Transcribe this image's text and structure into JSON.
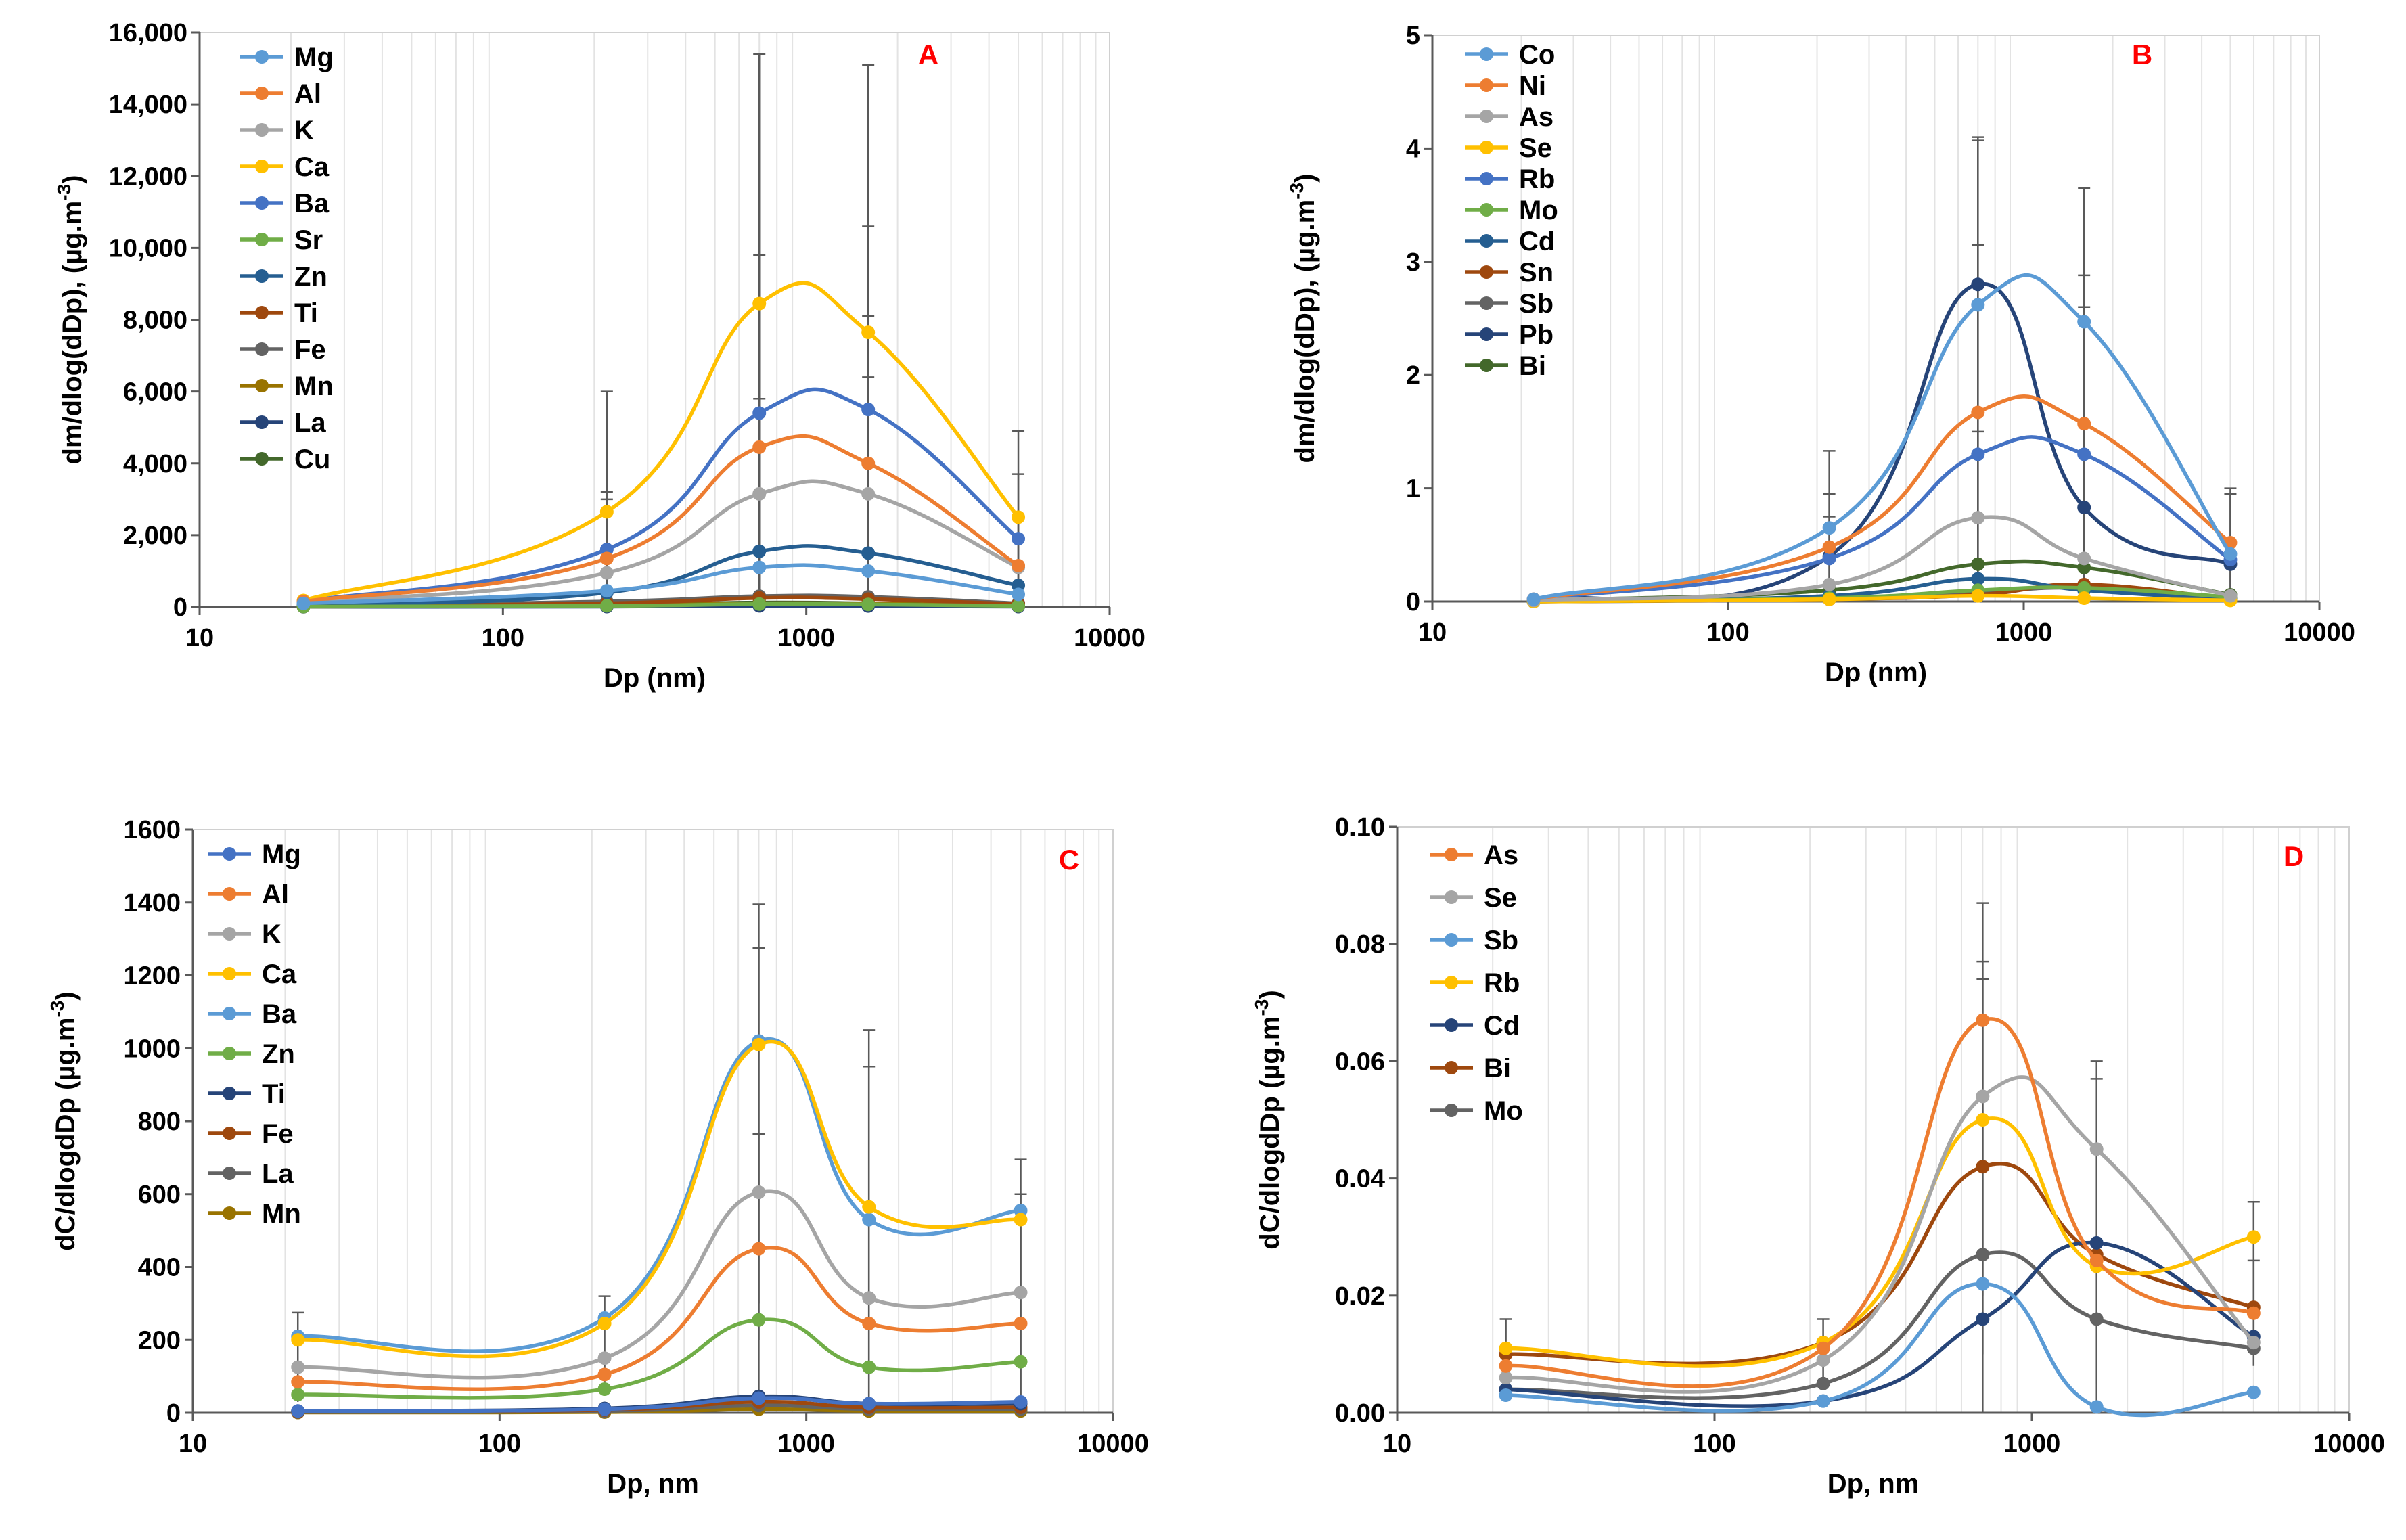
{
  "chart_data": [
    {
      "id": "A",
      "type": "line",
      "xscale": "log",
      "panel_label": "A",
      "xlabel": "Dp (nm)",
      "ylabel": "dm/dlog(dDp), (µg.m-3)",
      "ylabel_main": "dm/dlog(dDp), (µg.m",
      "ylabel_sup": "-3",
      "ylabel_end": ")",
      "xlim": [
        10,
        10000
      ],
      "ylim": [
        0,
        16000
      ],
      "xticks": [
        10,
        100,
        1000,
        10000
      ],
      "xtick_labels": [
        "10",
        "100",
        "1000",
        "10000"
      ],
      "yticks": [
        0,
        2000,
        4000,
        6000,
        8000,
        10000,
        12000,
        14000,
        16000
      ],
      "ytick_labels": [
        "0",
        "2,000",
        "4,000",
        "6,000",
        "8,000",
        "10,000",
        "12,000",
        "14,000",
        "16,000"
      ],
      "x": [
        22,
        220,
        700,
        1600,
        5000
      ],
      "series": [
        {
          "name": "Mg",
          "color": "#5B9BD5",
          "values": [
            100,
            450,
            1100,
            1000,
            350
          ]
        },
        {
          "name": "Al",
          "color": "#ED7D31",
          "values": [
            150,
            1350,
            4450,
            4000,
            1150
          ]
        },
        {
          "name": "K",
          "color": "#A5A5A5",
          "values": [
            120,
            950,
            3150,
            3150,
            1100
          ]
        },
        {
          "name": "Ca",
          "color": "#FFC000",
          "values": [
            180,
            2650,
            8450,
            7650,
            2500
          ]
        },
        {
          "name": "Ba",
          "color": "#4472C4",
          "values": [
            150,
            1600,
            5400,
            5500,
            1900
          ]
        },
        {
          "name": "Sr",
          "color": "#70AD47",
          "values": [
            10,
            30,
            80,
            70,
            30
          ]
        },
        {
          "name": "Zn",
          "color": "#255E91",
          "values": [
            50,
            400,
            1550,
            1500,
            600
          ]
        },
        {
          "name": "Ti",
          "color": "#9E480E",
          "values": [
            20,
            100,
            250,
            220,
            80
          ]
        },
        {
          "name": "Fe",
          "color": "#636363",
          "values": [
            30,
            150,
            300,
            280,
            100
          ]
        },
        {
          "name": "Mn",
          "color": "#997300",
          "values": [
            10,
            40,
            100,
            90,
            30
          ]
        },
        {
          "name": "La",
          "color": "#264478",
          "values": [
            5,
            10,
            30,
            25,
            10
          ]
        },
        {
          "name": "Cu",
          "color": "#43682B",
          "values": [
            20,
            60,
            120,
            100,
            40
          ]
        }
      ],
      "error_bars": [
        {
          "x": 22,
          "low": 0,
          "high": 250
        },
        {
          "x": 220,
          "low": 0,
          "high": 6000
        },
        {
          "x": 220,
          "low": 0,
          "high": 3200
        },
        {
          "x": 220,
          "low": 0,
          "high": 3000
        },
        {
          "x": 700,
          "low": 0,
          "high": 15400
        },
        {
          "x": 700,
          "low": 0,
          "high": 9800
        },
        {
          "x": 700,
          "low": 0,
          "high": 5800
        },
        {
          "x": 1600,
          "low": 0,
          "high": 15100
        },
        {
          "x": 1600,
          "low": 0,
          "high": 10600
        },
        {
          "x": 1600,
          "low": 0,
          "high": 8100
        },
        {
          "x": 1600,
          "low": 0,
          "high": 6400
        },
        {
          "x": 5000,
          "low": 0,
          "high": 4900
        },
        {
          "x": 5000,
          "low": 0,
          "high": 3700
        },
        {
          "x": 5000,
          "low": 0,
          "high": 2500
        }
      ]
    },
    {
      "id": "B",
      "type": "line",
      "xscale": "log",
      "panel_label": "B",
      "xlabel": "Dp (nm)",
      "ylabel": "dm/dlog(dDp), (µg.m-3)",
      "ylabel_main": "dm/dlog(dDp), (µg.m",
      "ylabel_sup": "-3",
      "ylabel_end": ")",
      "xlim": [
        10,
        10000
      ],
      "ylim": [
        0,
        5
      ],
      "xticks": [
        10,
        100,
        1000,
        10000
      ],
      "xtick_labels": [
        "10",
        "100",
        "1000",
        "10000"
      ],
      "yticks": [
        0,
        1,
        2,
        3,
        4,
        5
      ],
      "ytick_labels": [
        "0",
        "1",
        "2",
        "3",
        "4",
        "5"
      ],
      "x": [
        22,
        220,
        700,
        1600,
        5000
      ],
      "series": [
        {
          "name": "Co",
          "color": "#5B9BD5",
          "values": [
            0.02,
            0.65,
            2.62,
            2.47,
            0.42
          ]
        },
        {
          "name": "Ni",
          "color": "#ED7D31",
          "values": [
            0.02,
            0.48,
            1.67,
            1.57,
            0.52
          ]
        },
        {
          "name": "As",
          "color": "#A5A5A5",
          "values": [
            0.01,
            0.15,
            0.74,
            0.38,
            0.05
          ]
        },
        {
          "name": "Se",
          "color": "#FFC000",
          "values": [
            0.0,
            0.02,
            0.05,
            0.03,
            0.01
          ]
        },
        {
          "name": "Rb",
          "color": "#4472C4",
          "values": [
            0.02,
            0.38,
            1.3,
            1.3,
            0.37
          ]
        },
        {
          "name": "Mo",
          "color": "#70AD47",
          "values": [
            0.0,
            0.03,
            0.1,
            0.12,
            0.04
          ]
        },
        {
          "name": "Cd",
          "color": "#255E91",
          "values": [
            0.0,
            0.05,
            0.2,
            0.1,
            0.02
          ]
        },
        {
          "name": "Sn",
          "color": "#9E480E",
          "values": [
            0.0,
            0.02,
            0.06,
            0.15,
            0.02
          ]
        },
        {
          "name": "Sb",
          "color": "#636363",
          "values": [
            0.0,
            0.02,
            0.08,
            0.12,
            0.03
          ]
        },
        {
          "name": "Pb",
          "color": "#264478",
          "values": [
            0.02,
            0.4,
            2.8,
            0.83,
            0.33
          ]
        },
        {
          "name": "Bi",
          "color": "#43682B",
          "values": [
            0.01,
            0.1,
            0.33,
            0.3,
            0.06
          ]
        }
      ],
      "error_bars": [
        {
          "x": 220,
          "low": 0,
          "high": 1.33
        },
        {
          "x": 220,
          "low": 0,
          "high": 0.95
        },
        {
          "x": 220,
          "low": 0,
          "high": 0.75
        },
        {
          "x": 700,
          "low": 0,
          "high": 4.1
        },
        {
          "x": 700,
          "low": 0,
          "high": 4.07
        },
        {
          "x": 700,
          "low": 0,
          "high": 3.15
        },
        {
          "x": 700,
          "low": 0,
          "high": 1.5
        },
        {
          "x": 1600,
          "low": 0,
          "high": 3.65
        },
        {
          "x": 1600,
          "low": 0,
          "high": 2.88
        },
        {
          "x": 1600,
          "low": 0,
          "high": 2.6
        },
        {
          "x": 5000,
          "low": 0,
          "high": 1.0
        },
        {
          "x": 5000,
          "low": 0,
          "high": 0.95
        }
      ]
    },
    {
      "id": "C",
      "type": "line",
      "xscale": "log",
      "panel_label": "C",
      "xlabel": "Dp, nm",
      "ylabel": "dC/dlogdDp (µg.m-3)",
      "ylabel_main": "dC/dlogdDp (µg.m",
      "ylabel_sup": "-3",
      "ylabel_end": ")",
      "xlim": [
        10,
        10000
      ],
      "ylim": [
        0,
        1600
      ],
      "xticks": [
        10,
        100,
        1000,
        10000
      ],
      "xtick_labels": [
        "10",
        "100",
        "1000",
        "10000"
      ],
      "yticks": [
        0,
        200,
        400,
        600,
        800,
        1000,
        1200,
        1400,
        1600
      ],
      "ytick_labels": [
        "0",
        "200",
        "400",
        "600",
        "800",
        "1000",
        "1200",
        "1400",
        "1600"
      ],
      "x": [
        22,
        220,
        700,
        1600,
        5000
      ],
      "series": [
        {
          "name": "Mg",
          "color": "#4472C4",
          "values": [
            5,
            10,
            40,
            25,
            30
          ]
        },
        {
          "name": "Al",
          "color": "#ED7D31",
          "values": [
            85,
            105,
            450,
            245,
            245
          ]
        },
        {
          "name": "K",
          "color": "#A5A5A5",
          "values": [
            125,
            150,
            605,
            315,
            330
          ]
        },
        {
          "name": "Ca",
          "color": "#FFC000",
          "values": [
            200,
            245,
            1010,
            565,
            530
          ]
        },
        {
          "name": "Ba",
          "color": "#5B9BD5",
          "values": [
            210,
            260,
            1020,
            530,
            555
          ]
        },
        {
          "name": "Zn",
          "color": "#70AD47",
          "values": [
            50,
            65,
            255,
            125,
            140
          ]
        },
        {
          "name": "Ti",
          "color": "#264478",
          "values": [
            5,
            12,
            45,
            25,
            25
          ]
        },
        {
          "name": "Fe",
          "color": "#9E480E",
          "values": [
            3,
            8,
            30,
            15,
            15
          ]
        },
        {
          "name": "La",
          "color": "#636363",
          "values": [
            2,
            5,
            20,
            10,
            10
          ]
        },
        {
          "name": "Mn",
          "color": "#997300",
          "values": [
            1,
            2,
            10,
            5,
            5
          ]
        }
      ],
      "error_bars": [
        {
          "x": 22,
          "low": 30,
          "high": 275
        },
        {
          "x": 220,
          "low": 50,
          "high": 320
        },
        {
          "x": 700,
          "low": 200,
          "high": 1395
        },
        {
          "x": 700,
          "low": 300,
          "high": 1275
        },
        {
          "x": 700,
          "low": 0,
          "high": 765
        },
        {
          "x": 1600,
          "low": 0,
          "high": 1050
        },
        {
          "x": 1600,
          "low": 0,
          "high": 950
        },
        {
          "x": 5000,
          "low": 0,
          "high": 695
        },
        {
          "x": 5000,
          "low": 0,
          "high": 600
        }
      ]
    },
    {
      "id": "D",
      "type": "line",
      "xscale": "log",
      "panel_label": "D",
      "xlabel": "Dp, nm",
      "ylabel": "dC/dlogdDp (µg.m-3)",
      "ylabel_main": "dC/dlogdDp (µg.m",
      "ylabel_sup": "-3",
      "ylabel_end": ")",
      "xlim": [
        10,
        10000
      ],
      "ylim": [
        0,
        0.1
      ],
      "xticks": [
        10,
        100,
        1000,
        10000
      ],
      "xtick_labels": [
        "10",
        "100",
        "1000",
        "10000"
      ],
      "yticks": [
        0,
        0.02,
        0.04,
        0.06,
        0.08,
        0.1
      ],
      "ytick_labels": [
        "0.00",
        "0.02",
        "0.04",
        "0.06",
        "0.08",
        "0.10"
      ],
      "x": [
        22,
        220,
        700,
        1600,
        5000
      ],
      "series": [
        {
          "name": "As",
          "color": "#ED7D31",
          "values": [
            0.008,
            0.011,
            0.067,
            0.026,
            0.017
          ]
        },
        {
          "name": "Se",
          "color": "#A5A5A5",
          "values": [
            0.006,
            0.009,
            0.054,
            0.045,
            0.012
          ]
        },
        {
          "name": "Sb",
          "color": "#5B9BD5",
          "values": [
            0.003,
            0.002,
            0.022,
            0.001,
            0.0035
          ]
        },
        {
          "name": "Rb",
          "color": "#FFC000",
          "values": [
            0.011,
            0.012,
            0.05,
            0.025,
            0.03
          ]
        },
        {
          "name": "Cd",
          "color": "#264478",
          "values": [
            0.004,
            0.002,
            0.016,
            0.029,
            0.013
          ]
        },
        {
          "name": "Bi",
          "color": "#9E480E",
          "values": [
            0.01,
            0.012,
            0.042,
            0.027,
            0.018
          ]
        },
        {
          "name": "Mo",
          "color": "#636363",
          "values": [
            0.004,
            0.005,
            0.027,
            0.016,
            0.011
          ]
        }
      ],
      "error_bars": [
        {
          "x": 22,
          "low": 0.003,
          "high": 0.016
        },
        {
          "x": 220,
          "low": 0.005,
          "high": 0.016
        },
        {
          "x": 700,
          "low": 0.0,
          "high": 0.087
        },
        {
          "x": 700,
          "low": 0.01,
          "high": 0.077
        },
        {
          "x": 700,
          "low": 0.02,
          "high": 0.074
        },
        {
          "x": 1600,
          "low": 0.0,
          "high": 0.06
        },
        {
          "x": 1600,
          "low": 0.005,
          "high": 0.057
        },
        {
          "x": 5000,
          "low": 0.008,
          "high": 0.036
        },
        {
          "x": 5000,
          "low": 0.01,
          "high": 0.026
        }
      ]
    }
  ]
}
